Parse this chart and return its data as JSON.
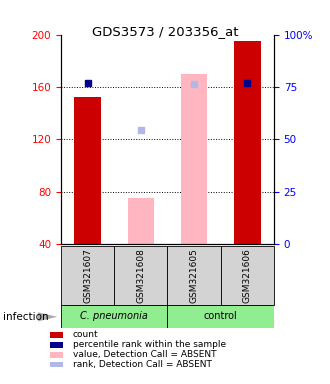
{
  "title": "GDS3573 / 203356_at",
  "samples": [
    "GSM321607",
    "GSM321608",
    "GSM321605",
    "GSM321606"
  ],
  "ylim_left": [
    40,
    200
  ],
  "ylim_right": [
    0,
    100
  ],
  "yticks_left": [
    40,
    80,
    120,
    160,
    200
  ],
  "yticks_right": [
    0,
    25,
    50,
    75,
    100
  ],
  "yticklabels_right": [
    "0",
    "25",
    "50",
    "75",
    "100%"
  ],
  "count_values": [
    152,
    null,
    null,
    195
  ],
  "count_color": "#cc0000",
  "percentile_values": [
    163,
    null,
    null,
    163
  ],
  "percentile_color": "#00008b",
  "absent_value_values": [
    null,
    75,
    170,
    null
  ],
  "absent_value_color": "#ffb6c1",
  "absent_rank_values": [
    null,
    127,
    162,
    null
  ],
  "absent_rank_color": "#b0b8e8",
  "bar_width": 0.5,
  "legend_entries": [
    {
      "label": "count",
      "color": "#cc0000"
    },
    {
      "label": "percentile rank within the sample",
      "color": "#00008b"
    },
    {
      "label": "value, Detection Call = ABSENT",
      "color": "#ffb6c1"
    },
    {
      "label": "rank, Detection Call = ABSENT",
      "color": "#b0b8e8"
    }
  ]
}
